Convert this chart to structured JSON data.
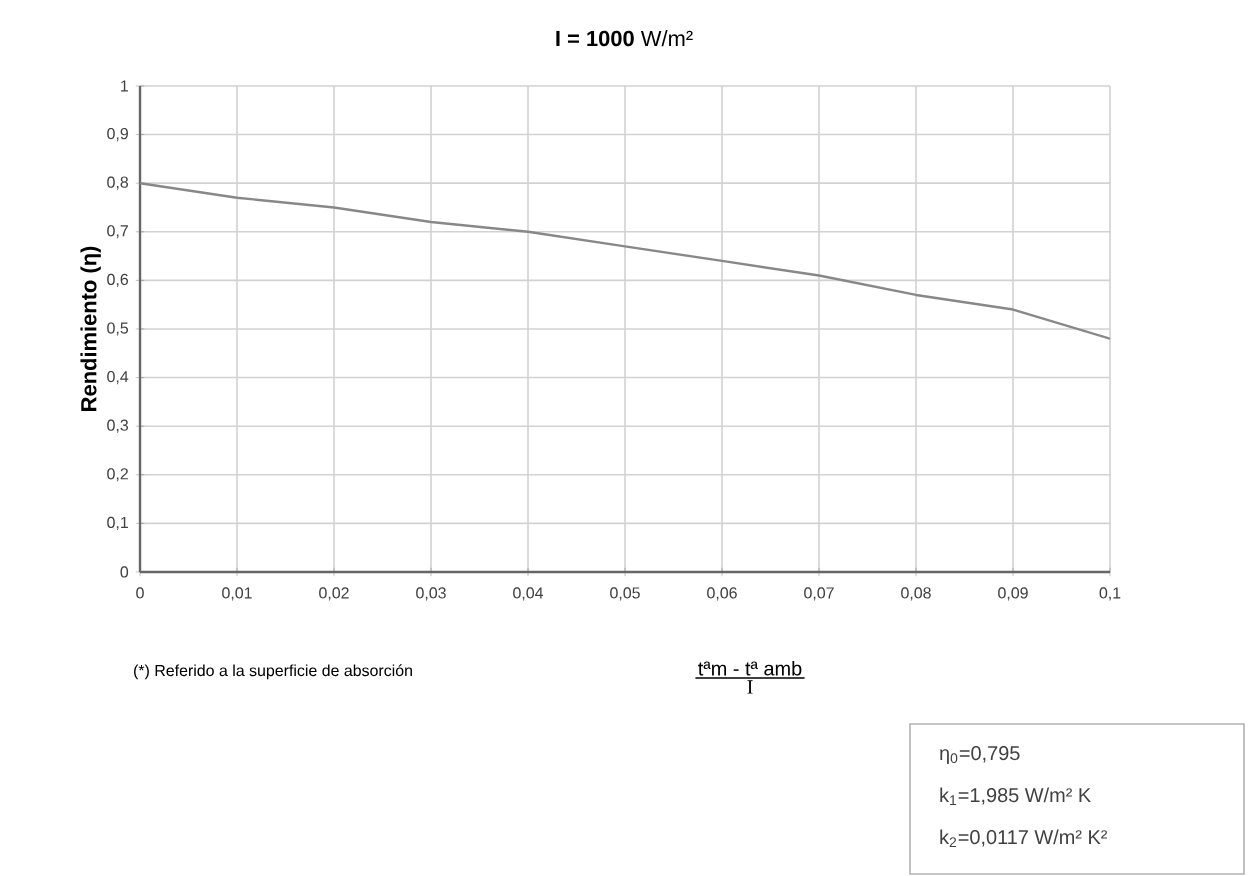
{
  "chart_data": {
    "type": "line",
    "title": "**I = 1000** W/m²",
    "ylabel": "Rendimiento (η)",
    "xlabel": "tªm - tª amb",
    "annotations": [
      "(*) Referido a la superficie de absorción",
      "I",
      "η$_{0}$=0,795",
      "k$_{1}$=1,985 W/m² K",
      "k$_{2}$=0,0117 W/m² K²"
    ],
    "x": [
      0,
      0.01,
      0.02,
      0.03,
      0.04,
      0.05,
      0.06,
      0.07,
      0.08,
      0.09,
      0.1
    ],
    "series": [
      {
        "color": "#888888",
        "values": [
          0.8,
          0.77,
          0.75,
          0.72,
          0.7,
          0.67,
          0.64,
          0.61,
          0.57,
          0.54,
          0.48
        ]
      }
    ],
    "xlim": [
      0,
      0.1
    ],
    "ylim": [
      0,
      1
    ],
    "xticks": [
      0,
      {
        "value": 0.01,
        "label": "0,01"
      },
      {
        "value": 0.02,
        "label": "0,02"
      },
      {
        "value": 0.03,
        "label": "0,03"
      },
      {
        "value": 0.04,
        "label": "0,04"
      },
      {
        "value": 0.05,
        "label": "0,05"
      },
      {
        "value": 0.06,
        "label": "0,06"
      },
      {
        "value": 0.07,
        "label": "0,07"
      },
      {
        "value": 0.08,
        "label": "0,08"
      },
      {
        "value": 0.09,
        "label": "0,09"
      },
      {
        "value": 0.1,
        "label": "0,1"
      }
    ],
    "yticks": [
      0,
      {
        "value": 0.1,
        "label": "0,1"
      },
      {
        "value": 0.2,
        "label": "0,2"
      },
      {
        "value": 0.3,
        "label": "0,3"
      },
      {
        "value": 0.4,
        "label": "0,4"
      },
      {
        "value": 0.5,
        "label": "0,5"
      },
      {
        "value": 0.6,
        "label": "0,6"
      },
      {
        "value": 0.7,
        "label": "0,7"
      },
      {
        "value": 0.8,
        "label": "0,8"
      },
      {
        "value": 0.9,
        "label": "0,9"
      },
      1
    ],
    "grid": true,
    "marker": "none",
    "line_style": "solid"
  }
}
